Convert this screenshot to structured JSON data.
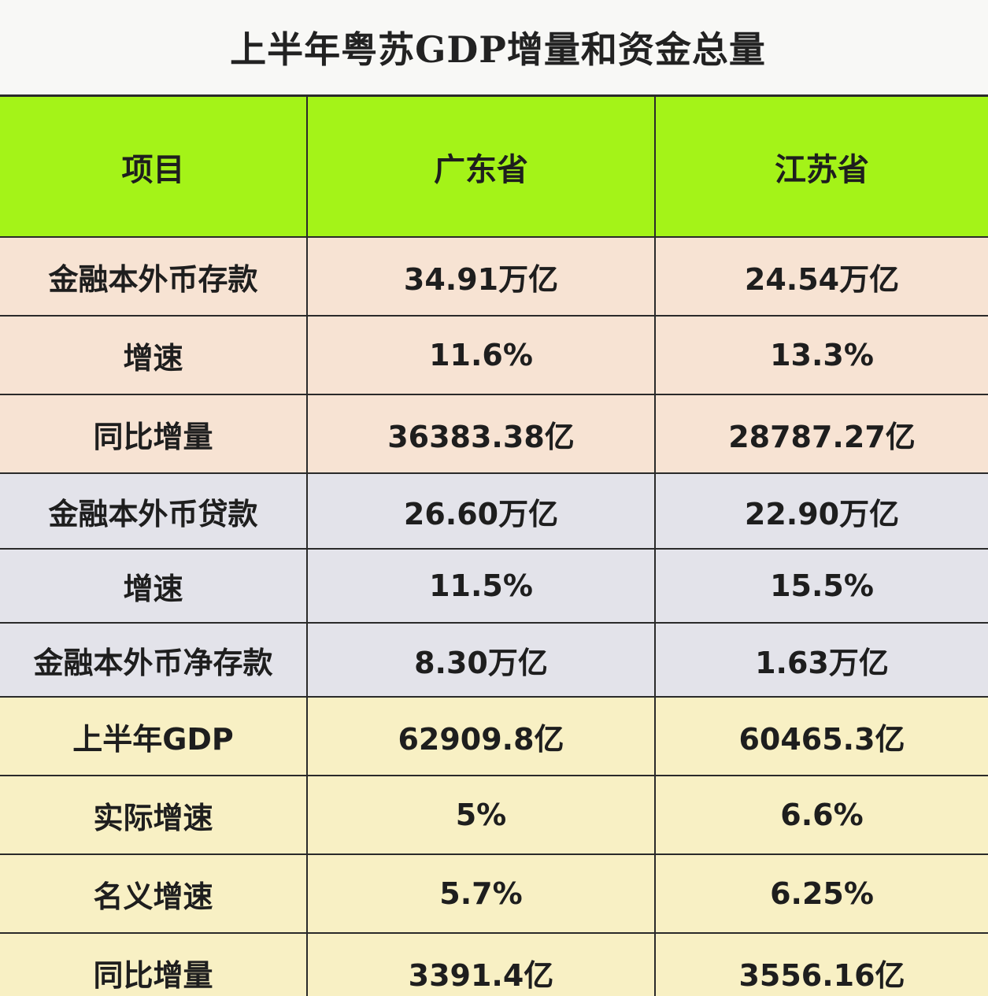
{
  "title": "上半年粤苏GDP增量和资金总量",
  "columns": [
    "项目",
    "广东省",
    "江苏省"
  ],
  "rows": [
    {
      "item": "金融本外币存款",
      "guangdong": "34.91万亿",
      "jiangsu": "24.54万亿"
    },
    {
      "item": "增速",
      "guangdong": "11.6%",
      "jiangsu": "13.3%"
    },
    {
      "item": "同比增量",
      "guangdong": "36383.38亿",
      "jiangsu": "28787.27亿"
    },
    {
      "item": "金融本外币贷款",
      "guangdong": "26.60万亿",
      "jiangsu": "22.90万亿"
    },
    {
      "item": "增速",
      "guangdong": "11.5%",
      "jiangsu": "15.5%"
    },
    {
      "item": "金融本外币净存款",
      "guangdong": "8.30万亿",
      "jiangsu": "1.63万亿"
    },
    {
      "item": "上半年GDP",
      "guangdong": "62909.8亿",
      "jiangsu": "60465.3亿"
    },
    {
      "item": "实际增速",
      "guangdong": "5%",
      "jiangsu": "6.6%"
    },
    {
      "item": "名义增速",
      "guangdong": "5.7%",
      "jiangsu": "6.25%"
    },
    {
      "item": "同比增量",
      "guangdong": "3391.4亿",
      "jiangsu": "3556.16亿"
    }
  ],
  "colors": {
    "header": "#a4f318",
    "deposit_group": "#f7e3d3",
    "loan_group": "#e3e3ea",
    "gdp_group": "#f8f0c4"
  }
}
